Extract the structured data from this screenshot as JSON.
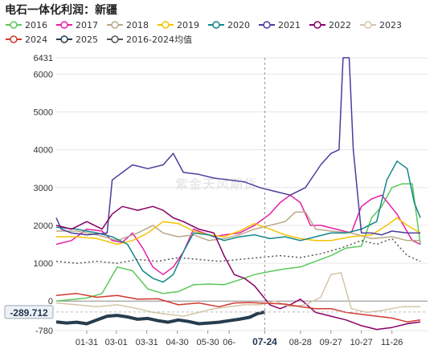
{
  "title": "电石一体化利润：新疆",
  "watermark": "紫金天风期货",
  "chart_data": {
    "type": "line",
    "x_ticks": [
      "01-31",
      "03-01",
      "03-31",
      "04-30",
      "05-30",
      "06-",
      "07-24",
      "08-28",
      "09-27",
      "10-27",
      "11-26"
    ],
    "x_range": [
      "01-01",
      "12-31"
    ],
    "y_ticks": [
      6431,
      6000,
      5000,
      4000,
      3000,
      2000,
      1000,
      0,
      -780
    ],
    "ylim": [
      -780,
      6431
    ],
    "cursor": {
      "x": "07-24",
      "y": -289.712
    },
    "series": [
      {
        "name": "2016",
        "color": "#5bc85b",
        "dashed": false,
        "points": [
          [
            0,
            0
          ],
          [
            30,
            80
          ],
          [
            45,
            200
          ],
          [
            60,
            900
          ],
          [
            75,
            800
          ],
          [
            90,
            320
          ],
          [
            105,
            200
          ],
          [
            120,
            250
          ],
          [
            135,
            430
          ],
          [
            150,
            450
          ],
          [
            165,
            430
          ],
          [
            180,
            560
          ],
          [
            195,
            700
          ],
          [
            210,
            780
          ],
          [
            225,
            850
          ],
          [
            240,
            900
          ],
          [
            255,
            1050
          ],
          [
            270,
            1200
          ],
          [
            285,
            1400
          ],
          [
            300,
            1450
          ],
          [
            310,
            2200
          ],
          [
            320,
            2500
          ],
          [
            330,
            3000
          ],
          [
            340,
            3100
          ],
          [
            350,
            3100
          ],
          [
            358,
            1500
          ]
        ]
      },
      {
        "name": "2017",
        "color": "#e61ea7",
        "dashed": false,
        "points": [
          [
            0,
            1500
          ],
          [
            15,
            1600
          ],
          [
            30,
            1900
          ],
          [
            45,
            1850
          ],
          [
            55,
            1600
          ],
          [
            65,
            1550
          ],
          [
            75,
            1800
          ],
          [
            85,
            1400
          ],
          [
            95,
            900
          ],
          [
            105,
            700
          ],
          [
            115,
            900
          ],
          [
            125,
            1300
          ],
          [
            135,
            1900
          ],
          [
            145,
            1800
          ],
          [
            155,
            1700
          ],
          [
            165,
            1750
          ],
          [
            180,
            1800
          ],
          [
            195,
            2000
          ],
          [
            210,
            2300
          ],
          [
            220,
            2600
          ],
          [
            230,
            2800
          ],
          [
            240,
            2600
          ],
          [
            250,
            2000
          ],
          [
            260,
            2000
          ],
          [
            275,
            1900
          ],
          [
            290,
            1800
          ],
          [
            300,
            2500
          ],
          [
            310,
            2700
          ],
          [
            320,
            2800
          ],
          [
            335,
            2300
          ],
          [
            350,
            1600
          ],
          [
            358,
            1500
          ]
        ]
      },
      {
        "name": "2018",
        "color": "#b8a98a",
        "dashed": false,
        "points": [
          [
            0,
            1850
          ],
          [
            20,
            1850
          ],
          [
            40,
            1750
          ],
          [
            60,
            1600
          ],
          [
            80,
            1800
          ],
          [
            95,
            2000
          ],
          [
            105,
            1800
          ],
          [
            120,
            1700
          ],
          [
            135,
            1750
          ],
          [
            150,
            1600
          ],
          [
            165,
            1650
          ],
          [
            180,
            1750
          ],
          [
            195,
            1900
          ],
          [
            210,
            2000
          ],
          [
            225,
            2100
          ],
          [
            235,
            2350
          ],
          [
            245,
            2350
          ],
          [
            255,
            1900
          ],
          [
            270,
            1850
          ],
          [
            290,
            1800
          ],
          [
            310,
            1650
          ],
          [
            330,
            1700
          ],
          [
            345,
            1600
          ],
          [
            358,
            1600
          ]
        ]
      },
      {
        "name": "2019",
        "color": "#f5c400",
        "dashed": false,
        "points": [
          [
            0,
            1700
          ],
          [
            20,
            1700
          ],
          [
            40,
            1650
          ],
          [
            60,
            1500
          ],
          [
            75,
            1600
          ],
          [
            90,
            1800
          ],
          [
            105,
            2100
          ],
          [
            120,
            2050
          ],
          [
            135,
            1850
          ],
          [
            150,
            1750
          ],
          [
            165,
            1700
          ],
          [
            180,
            1850
          ],
          [
            195,
            2050
          ],
          [
            210,
            1900
          ],
          [
            225,
            1750
          ],
          [
            240,
            1650
          ],
          [
            255,
            1600
          ],
          [
            270,
            1600
          ],
          [
            290,
            1700
          ],
          [
            310,
            1750
          ],
          [
            325,
            2000
          ],
          [
            335,
            2200
          ],
          [
            345,
            2000
          ],
          [
            358,
            1800
          ]
        ]
      },
      {
        "name": "2020",
        "color": "#12868a",
        "dashed": false,
        "points": [
          [
            0,
            1950
          ],
          [
            20,
            1900
          ],
          [
            40,
            1800
          ],
          [
            55,
            1700
          ],
          [
            70,
            1500
          ],
          [
            85,
            800
          ],
          [
            95,
            600
          ],
          [
            105,
            500
          ],
          [
            115,
            700
          ],
          [
            125,
            1300
          ],
          [
            135,
            1800
          ],
          [
            150,
            1750
          ],
          [
            165,
            1600
          ],
          [
            180,
            1700
          ],
          [
            195,
            1750
          ],
          [
            210,
            1650
          ],
          [
            225,
            1700
          ],
          [
            240,
            1600
          ],
          [
            255,
            1700
          ],
          [
            270,
            1800
          ],
          [
            285,
            1800
          ],
          [
            300,
            1900
          ],
          [
            315,
            2100
          ],
          [
            325,
            3200
          ],
          [
            335,
            3700
          ],
          [
            345,
            3500
          ],
          [
            352,
            2600
          ],
          [
            358,
            2200
          ]
        ]
      },
      {
        "name": "2021",
        "color": "#4b3c9e",
        "dashed": false,
        "points": [
          [
            0,
            2200
          ],
          [
            5,
            1900
          ],
          [
            15,
            1800
          ],
          [
            30,
            1750
          ],
          [
            50,
            1800
          ],
          [
            55,
            3200
          ],
          [
            75,
            3600
          ],
          [
            90,
            3500
          ],
          [
            105,
            3600
          ],
          [
            115,
            3900
          ],
          [
            125,
            3400
          ],
          [
            140,
            3350
          ],
          [
            155,
            3250
          ],
          [
            170,
            3200
          ],
          [
            185,
            3150
          ],
          [
            200,
            3000
          ],
          [
            215,
            2900
          ],
          [
            230,
            2800
          ],
          [
            245,
            3000
          ],
          [
            260,
            3600
          ],
          [
            270,
            3900
          ],
          [
            278,
            4000
          ],
          [
            282,
            6431
          ],
          [
            288,
            6431
          ],
          [
            292,
            4000
          ],
          [
            300,
            1800
          ],
          [
            310,
            1800
          ],
          [
            320,
            1750
          ],
          [
            330,
            1850
          ],
          [
            345,
            1800
          ],
          [
            358,
            1800
          ]
        ]
      },
      {
        "name": "2022",
        "color": "#880066",
        "dashed": false,
        "points": [
          [
            0,
            2000
          ],
          [
            15,
            1900
          ],
          [
            30,
            2100
          ],
          [
            45,
            1900
          ],
          [
            55,
            2300
          ],
          [
            65,
            2500
          ],
          [
            80,
            2400
          ],
          [
            95,
            2500
          ],
          [
            105,
            2400
          ],
          [
            115,
            2200
          ],
          [
            125,
            2100
          ],
          [
            140,
            1900
          ],
          [
            155,
            1800
          ],
          [
            165,
            1200
          ],
          [
            175,
            700
          ],
          [
            185,
            600
          ],
          [
            195,
            400
          ],
          [
            210,
            -100
          ],
          [
            220,
            -200
          ],
          [
            230,
            -100
          ],
          [
            240,
            50
          ],
          [
            255,
            -300
          ],
          [
            270,
            -400
          ],
          [
            285,
            -500
          ],
          [
            300,
            -650
          ],
          [
            315,
            -750
          ],
          [
            330,
            -700
          ],
          [
            345,
            -600
          ],
          [
            358,
            -550
          ]
        ]
      },
      {
        "name": "2023",
        "color": "#d3c6a6",
        "dashed": false,
        "points": [
          [
            0,
            -50
          ],
          [
            20,
            -100
          ],
          [
            40,
            -150
          ],
          [
            60,
            -100
          ],
          [
            80,
            -200
          ],
          [
            95,
            -300
          ],
          [
            110,
            -350
          ],
          [
            125,
            -400
          ],
          [
            140,
            -300
          ],
          [
            155,
            -200
          ],
          [
            170,
            -150
          ],
          [
            185,
            -100
          ],
          [
            200,
            -100
          ],
          [
            215,
            0
          ],
          [
            230,
            -150
          ],
          [
            245,
            -100
          ],
          [
            260,
            100
          ],
          [
            270,
            700
          ],
          [
            280,
            750
          ],
          [
            290,
            -200
          ],
          [
            305,
            -300
          ],
          [
            320,
            -250
          ],
          [
            340,
            -150
          ],
          [
            358,
            -150
          ]
        ]
      },
      {
        "name": "2024",
        "color": "#d0392e",
        "dashed": false,
        "points": [
          [
            0,
            150
          ],
          [
            20,
            200
          ],
          [
            40,
            100
          ],
          [
            60,
            150
          ],
          [
            80,
            50
          ],
          [
            100,
            60
          ],
          [
            120,
            -100
          ],
          [
            140,
            -50
          ],
          [
            160,
            -150
          ],
          [
            175,
            -50
          ],
          [
            190,
            -40
          ],
          [
            210,
            -60
          ],
          [
            225,
            -80
          ],
          [
            240,
            -150
          ],
          [
            255,
            -200
          ],
          [
            270,
            -200
          ],
          [
            285,
            -300
          ],
          [
            300,
            -350
          ],
          [
            315,
            -400
          ],
          [
            330,
            -450
          ],
          [
            345,
            -550
          ],
          [
            358,
            -500
          ]
        ]
      },
      {
        "name": "2025",
        "color": "#263d4f",
        "dashed": false,
        "bold": true,
        "points": [
          [
            0,
            -550
          ],
          [
            10,
            -580
          ],
          [
            20,
            -560
          ],
          [
            30,
            -600
          ],
          [
            40,
            -500
          ],
          [
            50,
            -400
          ],
          [
            60,
            -380
          ],
          [
            70,
            -420
          ],
          [
            80,
            -480
          ],
          [
            90,
            -460
          ],
          [
            100,
            -520
          ],
          [
            110,
            -560
          ],
          [
            120,
            -500
          ],
          [
            130,
            -540
          ],
          [
            140,
            -600
          ],
          [
            150,
            -580
          ],
          [
            160,
            -560
          ],
          [
            170,
            -520
          ],
          [
            180,
            -480
          ],
          [
            190,
            -430
          ],
          [
            198,
            -330
          ],
          [
            205,
            -290
          ]
        ]
      },
      {
        "name": "2016-2024均值",
        "color": "#555555",
        "dashed": true,
        "points": [
          [
            0,
            1050
          ],
          [
            20,
            1000
          ],
          [
            40,
            1050
          ],
          [
            60,
            1000
          ],
          [
            80,
            1100
          ],
          [
            100,
            1050
          ],
          [
            120,
            1150
          ],
          [
            140,
            1100
          ],
          [
            160,
            1050
          ],
          [
            180,
            1100
          ],
          [
            200,
            1150
          ],
          [
            220,
            1200
          ],
          [
            240,
            1150
          ],
          [
            260,
            1250
          ],
          [
            280,
            1400
          ],
          [
            300,
            1600
          ],
          [
            315,
            1500
          ],
          [
            330,
            1650
          ],
          [
            345,
            1200
          ],
          [
            358,
            1050
          ]
        ]
      }
    ]
  }
}
